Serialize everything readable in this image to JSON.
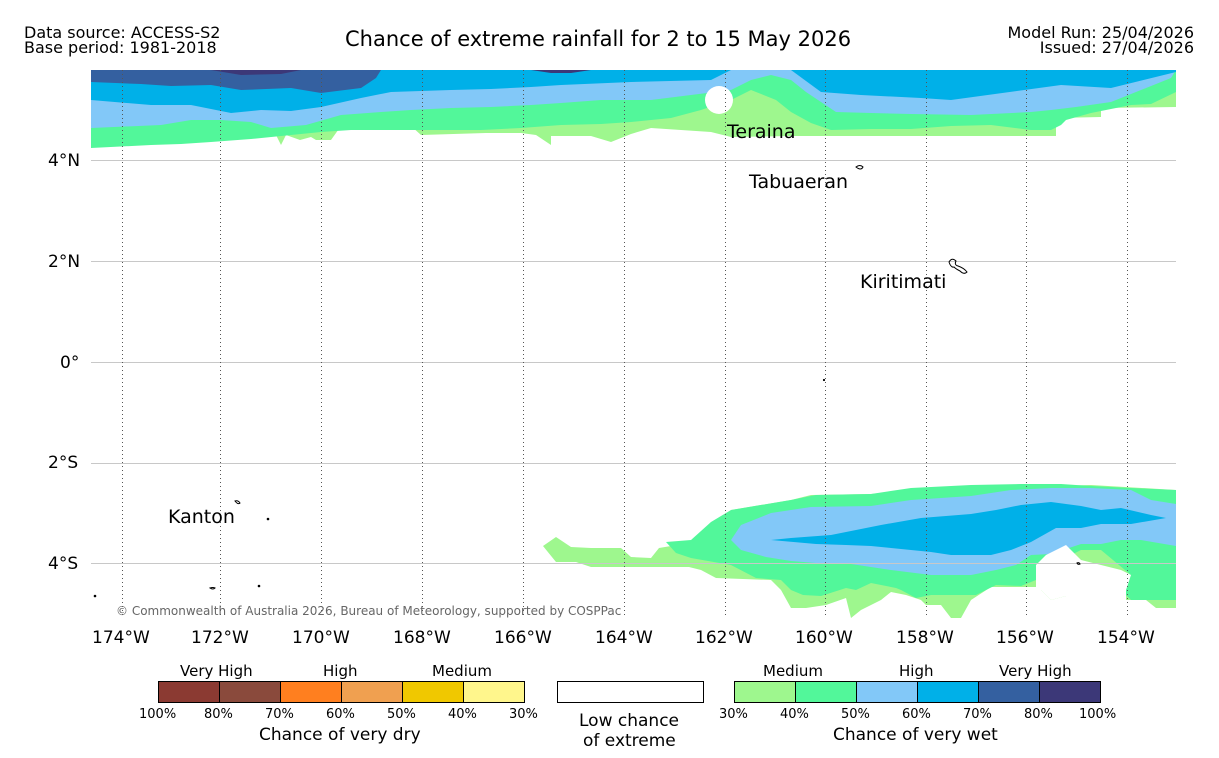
{
  "header": {
    "data_source": "Data source: ACCESS-S2",
    "base_period": "Base period: 1981-2018",
    "title": "Chance of extreme rainfall for 2 to 15 May 2026",
    "model_run": "Model Run: 25/04/2026",
    "issued": "Issued: 27/04/2026"
  },
  "map": {
    "lat_labels": [
      "4°N",
      "2°N",
      "0°",
      "2°S",
      "4°S"
    ],
    "lon_labels": [
      "174°W",
      "172°W",
      "170°W",
      "168°W",
      "166°W",
      "164°W",
      "162°W",
      "160°W",
      "158°W",
      "156°W",
      "154°W"
    ],
    "places": {
      "teraina": "Teraina",
      "tabuaeran": "Tabuaeran",
      "kiritimati": "Kiritimati",
      "kanton": "Kanton"
    },
    "credit": "© Commonwealth of Australia 2026, Bureau of Meteorology, supported by COSPPac"
  },
  "legend": {
    "dry": {
      "categories": [
        "Very High",
        "High",
        "Medium"
      ],
      "ticks": [
        "100%",
        "80%",
        "70%",
        "60%",
        "50%",
        "40%",
        "30%"
      ],
      "colors": [
        "#8b3a32",
        "#8a4a3c",
        "#ff7f1f",
        "#f0a050",
        "#f0c800",
        "#fff68c"
      ],
      "title": "Chance of very dry"
    },
    "low": {
      "line1": "Low chance",
      "line2": "of extreme"
    },
    "wet": {
      "categories": [
        "Medium",
        "High",
        "Very High"
      ],
      "ticks": [
        "30%",
        "40%",
        "50%",
        "60%",
        "70%",
        "80%",
        "100%"
      ],
      "colors": [
        "#9ef78e",
        "#52f79a",
        "#82c8f8",
        "#00b0e8",
        "#3460a0",
        "#3c3878"
      ],
      "title": "Chance of very wet"
    }
  }
}
